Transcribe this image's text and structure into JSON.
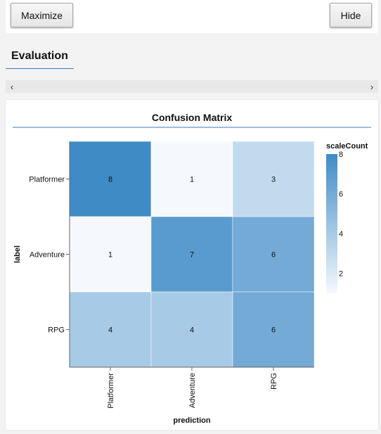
{
  "toolbar": {
    "maximize_label": "Maximize",
    "hide_label": "Hide"
  },
  "section": {
    "title": "Evaluation"
  },
  "scrollbar": {
    "left_glyph": "‹",
    "right_glyph": "›"
  },
  "chart_data": {
    "type": "heatmap",
    "title": "Confusion Matrix",
    "xlabel": "prediction",
    "ylabel": "label",
    "x_categories": [
      "Platformer",
      "Adventure",
      "RPG"
    ],
    "y_categories": [
      "Platformer",
      "Adventure",
      "RPG"
    ],
    "values": [
      [
        8,
        1,
        3
      ],
      [
        1,
        7,
        6
      ],
      [
        4,
        4,
        6
      ]
    ],
    "legend": {
      "title": "scaleCount",
      "ticks": [
        8,
        6,
        4,
        2
      ],
      "domain": [
        1,
        8
      ]
    },
    "colors": {
      "low": "#f5f9fe",
      "high": "#3f8bc6",
      "title_rule": "#3c78c0"
    }
  }
}
